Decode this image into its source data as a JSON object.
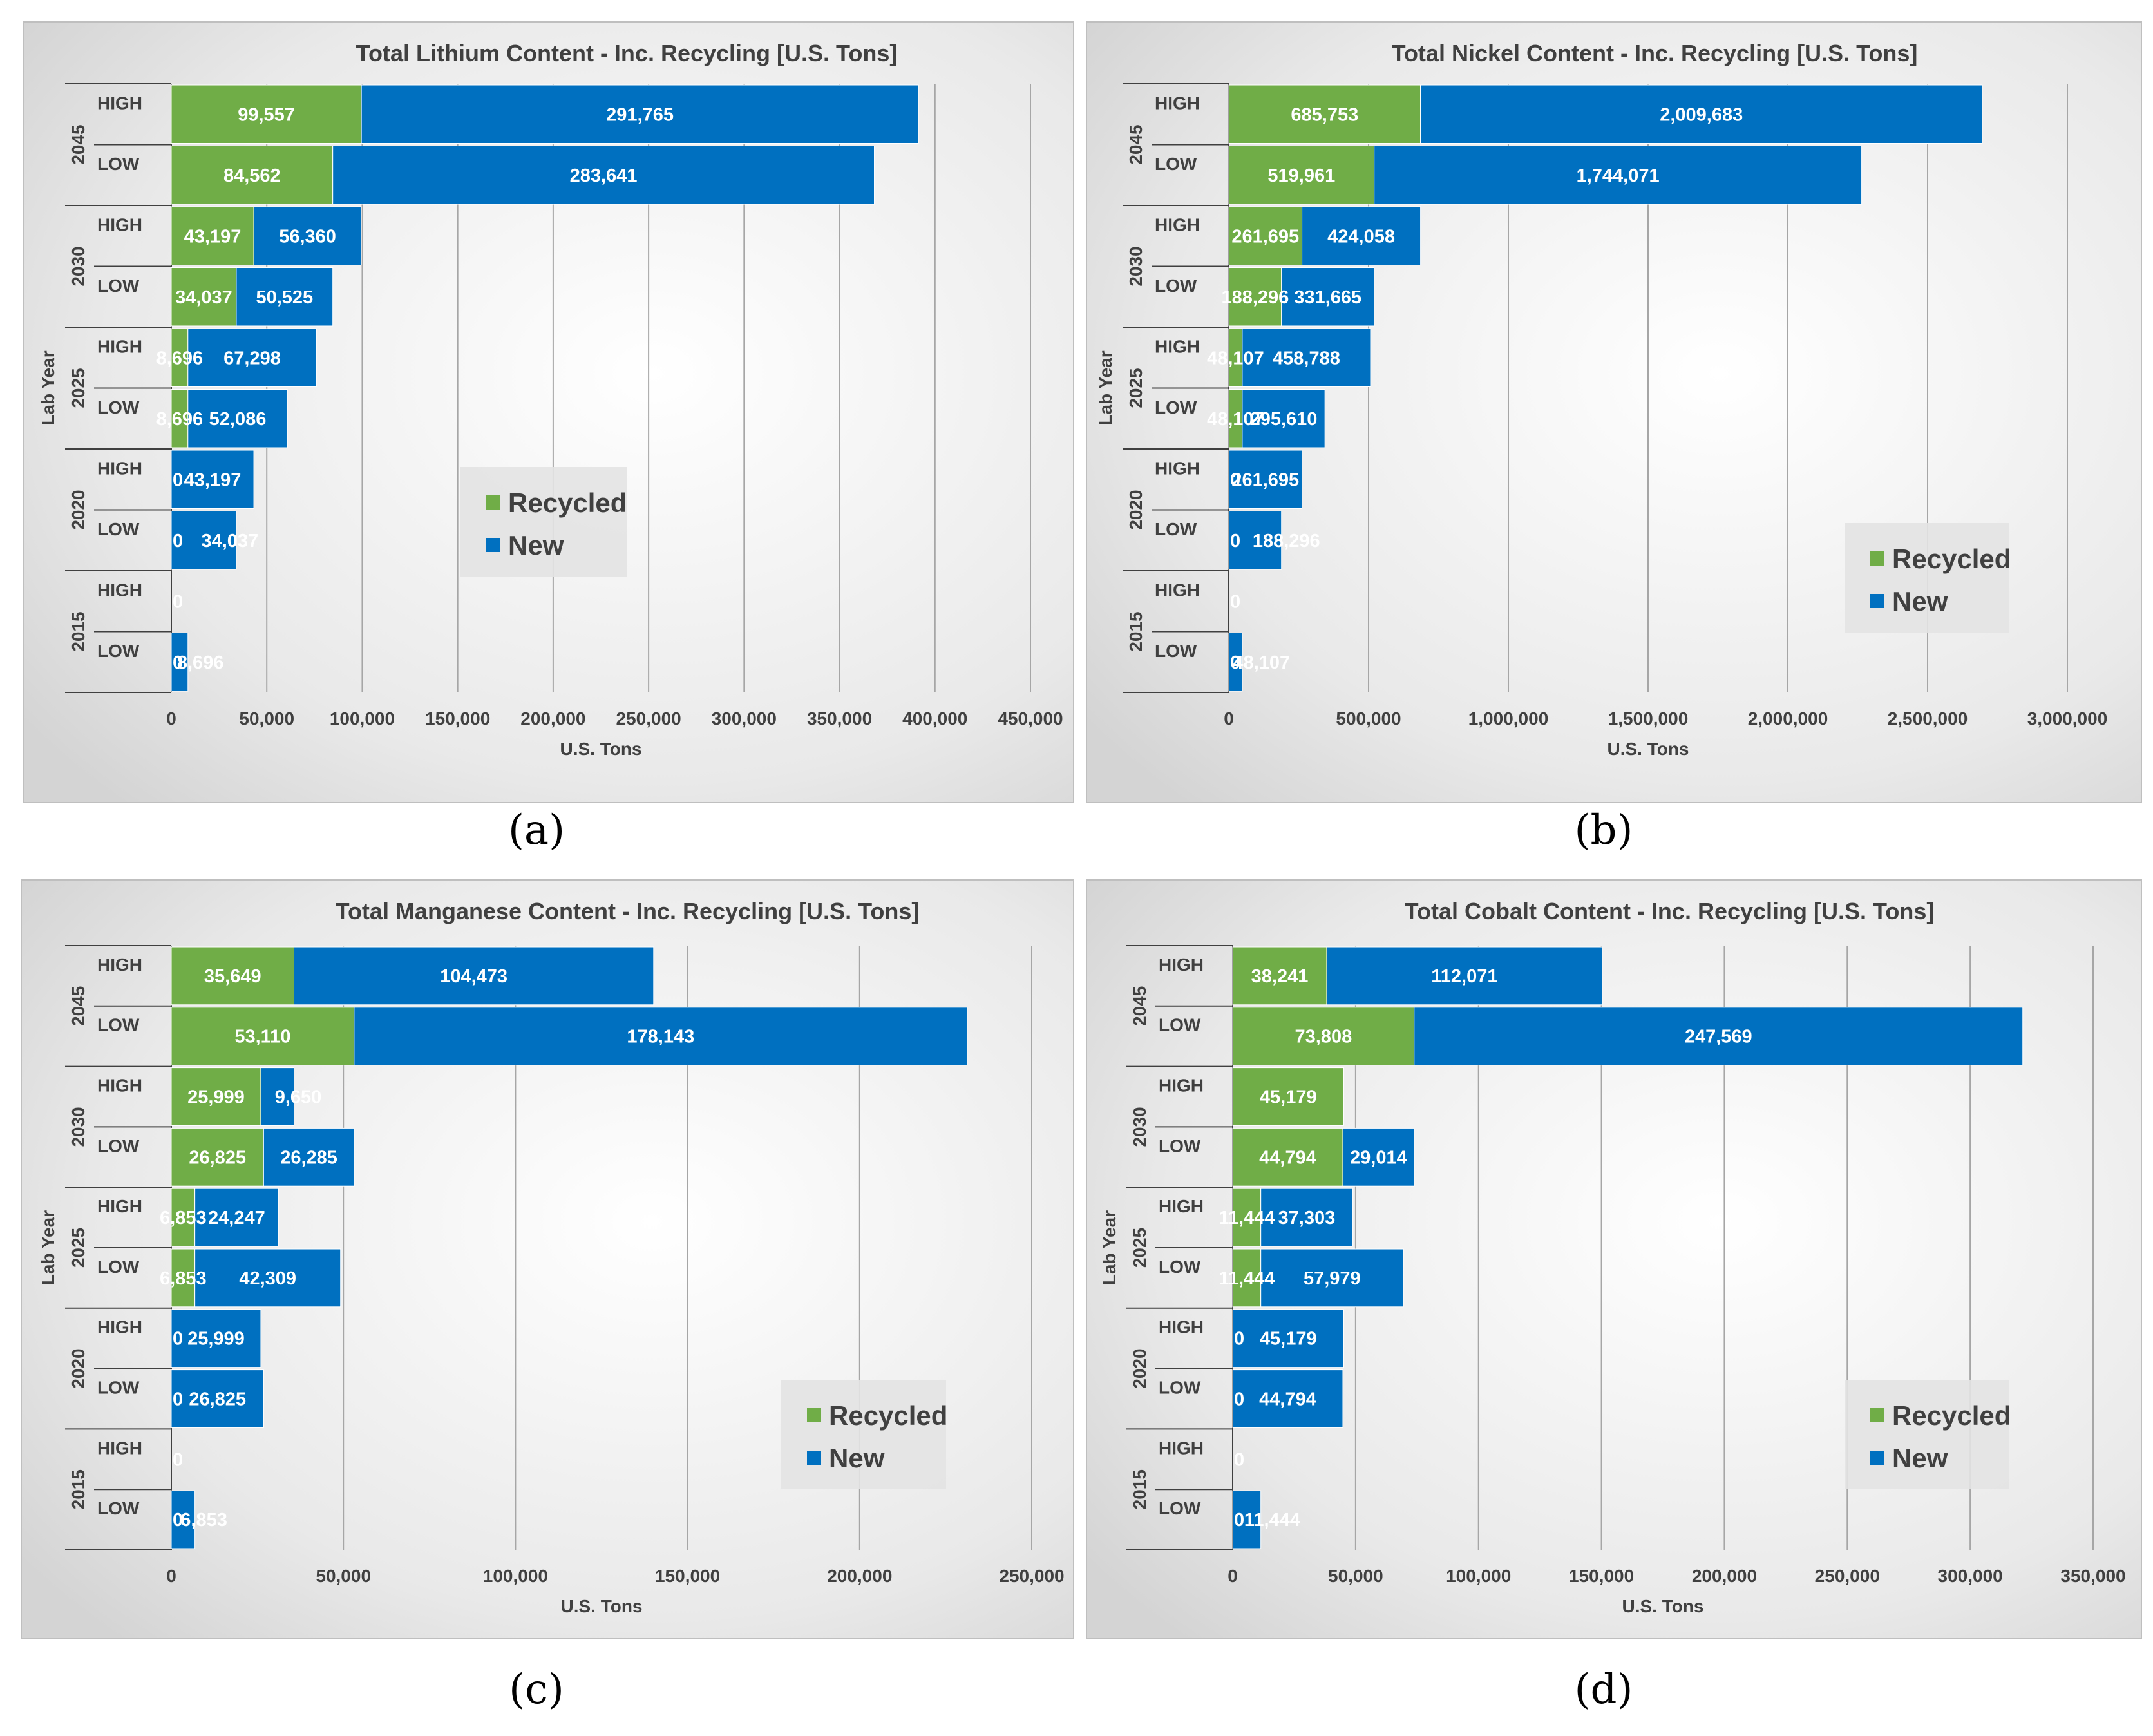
{
  "colors": {
    "recycled": "#70AD47",
    "new": "#0070C0"
  },
  "chart_data": [
    {
      "panel": "(a)",
      "type": "bar",
      "orientation": "horizontal",
      "stacked": true,
      "title": "Total Lithium Content - Inc. Recycling [U.S. Tons]",
      "xlabel": "U.S. Tons",
      "ylabel": "Lab Year",
      "xlim": [
        0,
        450000
      ],
      "xticks": [
        0,
        50000,
        100000,
        150000,
        200000,
        250000,
        300000,
        350000,
        400000,
        450000
      ],
      "xtick_labels": [
        "0",
        "50,000",
        "100,000",
        "150,000",
        "200,000",
        "250,000",
        "300,000",
        "350,000",
        "400,000",
        "450,000"
      ],
      "legend": [
        "Recycled",
        "New"
      ],
      "legend_position": "center-right",
      "groups": [
        {
          "year": "2045",
          "rows": [
            {
              "label": "HIGH",
              "recycled": 99557,
              "new": 291765,
              "recycled_label": "99,557",
              "new_label": "291,765"
            },
            {
              "label": "LOW",
              "recycled": 84562,
              "new": 283641,
              "recycled_label": "84,562",
              "new_label": "283,641"
            }
          ]
        },
        {
          "year": "2030",
          "rows": [
            {
              "label": "HIGH",
              "recycled": 43197,
              "new": 56360,
              "recycled_label": "43,197",
              "new_label": "56,360"
            },
            {
              "label": "LOW",
              "recycled": 34037,
              "new": 50525,
              "recycled_label": "34,037",
              "new_label": "50,525"
            }
          ]
        },
        {
          "year": "2025",
          "rows": [
            {
              "label": "HIGH",
              "recycled": 8696,
              "new": 67298,
              "recycled_label": "8,696",
              "new_label": "67,298"
            },
            {
              "label": "LOW",
              "recycled": 8696,
              "new": 52086,
              "recycled_label": "8,696",
              "new_label": "52,086"
            }
          ]
        },
        {
          "year": "2020",
          "rows": [
            {
              "label": "HIGH",
              "recycled": 0,
              "new": 43197,
              "recycled_label": "0",
              "new_label": "43,197"
            },
            {
              "label": "LOW",
              "recycled": 0,
              "new": 34037,
              "recycled_label": "0",
              "new_label": "34,037"
            }
          ]
        },
        {
          "year": "2015",
          "rows": [
            {
              "label": "HIGH",
              "recycled": 0,
              "new": 0,
              "recycled_label": "0",
              "new_label": ""
            },
            {
              "label": "LOW",
              "recycled": 0,
              "new": 8696,
              "recycled_label": "0",
              "new_label": "8,696"
            }
          ]
        }
      ]
    },
    {
      "panel": "(b)",
      "type": "bar",
      "orientation": "horizontal",
      "stacked": true,
      "title": "Total Nickel Content - Inc. Recycling [U.S. Tons]",
      "xlabel": "U.S. Tons",
      "ylabel": "Lab Year",
      "xlim": [
        0,
        3000000
      ],
      "xticks": [
        0,
        500000,
        1000000,
        1500000,
        2000000,
        2500000,
        3000000
      ],
      "xtick_labels": [
        "0",
        "500,000",
        "1,000,000",
        "1,500,000",
        "2,000,000",
        "2,500,000",
        "3,000,000"
      ],
      "legend": [
        "Recycled",
        "New"
      ],
      "legend_position": "bottom-right",
      "groups": [
        {
          "year": "2045",
          "rows": [
            {
              "label": "HIGH",
              "recycled": 685753,
              "new": 2009683,
              "recycled_label": "685,753",
              "new_label": "2,009,683"
            },
            {
              "label": "LOW",
              "recycled": 519961,
              "new": 1744071,
              "recycled_label": "519,961",
              "new_label": "1,744,071"
            }
          ]
        },
        {
          "year": "2030",
          "rows": [
            {
              "label": "HIGH",
              "recycled": 261695,
              "new": 424058,
              "recycled_label": "261,695",
              "new_label": "424,058"
            },
            {
              "label": "LOW",
              "recycled": 188296,
              "new": 331665,
              "recycled_label": "188,296",
              "new_label": "331,665"
            }
          ]
        },
        {
          "year": "2025",
          "rows": [
            {
              "label": "HIGH",
              "recycled": 48107,
              "new": 458788,
              "recycled_label": "48,107",
              "new_label": "458,788"
            },
            {
              "label": "LOW",
              "recycled": 48107,
              "new": 295610,
              "recycled_label": "48,107",
              "new_label": "295,610"
            }
          ]
        },
        {
          "year": "2020",
          "rows": [
            {
              "label": "HIGH",
              "recycled": 0,
              "new": 261695,
              "recycled_label": "0",
              "new_label": "261,695"
            },
            {
              "label": "LOW",
              "recycled": 0,
              "new": 188296,
              "recycled_label": "0",
              "new_label": "188,296"
            }
          ]
        },
        {
          "year": "2015",
          "rows": [
            {
              "label": "HIGH",
              "recycled": 0,
              "new": 0,
              "recycled_label": "0",
              "new_label": ""
            },
            {
              "label": "LOW",
              "recycled": 0,
              "new": 48107,
              "recycled_label": "0",
              "new_label": "48,107"
            }
          ]
        }
      ]
    },
    {
      "panel": "(c)",
      "type": "bar",
      "orientation": "horizontal",
      "stacked": true,
      "title": "Total Manganese Content - Inc. Recycling [U.S. Tons]",
      "xlabel": "U.S. Tons",
      "ylabel": "Lab Year",
      "xlim": [
        0,
        250000
      ],
      "xticks": [
        0,
        50000,
        100000,
        150000,
        200000,
        250000
      ],
      "xtick_labels": [
        "0",
        "50,000",
        "100,000",
        "150,000",
        "200,000",
        "250,000"
      ],
      "legend": [
        "Recycled",
        "New"
      ],
      "legend_position": "bottom-right",
      "groups": [
        {
          "year": "2045",
          "rows": [
            {
              "label": "HIGH",
              "recycled": 35649,
              "new": 104473,
              "recycled_label": "35,649",
              "new_label": "104,473"
            },
            {
              "label": "LOW",
              "recycled": 53110,
              "new": 178143,
              "recycled_label": "53,110",
              "new_label": "178,143"
            }
          ]
        },
        {
          "year": "2030",
          "rows": [
            {
              "label": "HIGH",
              "recycled": 25999,
              "new": 9650,
              "recycled_label": "25,999",
              "new_label": "9,650"
            },
            {
              "label": "LOW",
              "recycled": 26825,
              "new": 26285,
              "recycled_label": "26,825",
              "new_label": "26,285"
            }
          ]
        },
        {
          "year": "2025",
          "rows": [
            {
              "label": "HIGH",
              "recycled": 6853,
              "new": 24247,
              "recycled_label": "6,853",
              "new_label": "24,247"
            },
            {
              "label": "LOW",
              "recycled": 6853,
              "new": 42309,
              "recycled_label": "6,853",
              "new_label": "42,309"
            }
          ]
        },
        {
          "year": "2020",
          "rows": [
            {
              "label": "HIGH",
              "recycled": 0,
              "new": 25999,
              "recycled_label": "0",
              "new_label": "25,999"
            },
            {
              "label": "LOW",
              "recycled": 0,
              "new": 26825,
              "recycled_label": "0",
              "new_label": "26,825"
            }
          ]
        },
        {
          "year": "2015",
          "rows": [
            {
              "label": "HIGH",
              "recycled": 0,
              "new": 0,
              "recycled_label": "0",
              "new_label": ""
            },
            {
              "label": "LOW",
              "recycled": 0,
              "new": 6853,
              "recycled_label": "0",
              "new_label": "6,853"
            }
          ]
        }
      ]
    },
    {
      "panel": "(d)",
      "type": "bar",
      "orientation": "horizontal",
      "stacked": true,
      "title": "Total Cobalt Content - Inc. Recycling [U.S. Tons]",
      "xlabel": "U.S. Tons",
      "ylabel": "Lab Year",
      "xlim": [
        0,
        350000
      ],
      "xticks": [
        0,
        50000,
        100000,
        150000,
        200000,
        250000,
        300000,
        350000
      ],
      "xtick_labels": [
        "0",
        "50,000",
        "100,000",
        "150,000",
        "200,000",
        "250,000",
        "300,000",
        "350,000"
      ],
      "legend": [
        "Recycled",
        "New"
      ],
      "legend_position": "bottom-right",
      "groups": [
        {
          "year": "2045",
          "rows": [
            {
              "label": "HIGH",
              "recycled": 38241,
              "new": 112071,
              "recycled_label": "38,241",
              "new_label": "112,071"
            },
            {
              "label": "LOW",
              "recycled": 73808,
              "new": 247569,
              "recycled_label": "73,808",
              "new_label": "247,569"
            }
          ]
        },
        {
          "year": "2030",
          "rows": [
            {
              "label": "HIGH",
              "recycled": 45179,
              "new": 0,
              "recycled_label": "45,179",
              "new_label": ""
            },
            {
              "label": "LOW",
              "recycled": 44794,
              "new": 29014,
              "recycled_label": "44,794",
              "new_label": "29,014"
            }
          ]
        },
        {
          "year": "2025",
          "rows": [
            {
              "label": "HIGH",
              "recycled": 11444,
              "new": 37303,
              "recycled_label": "11,444",
              "new_label": "37,303"
            },
            {
              "label": "LOW",
              "recycled": 11444,
              "new": 57979,
              "recycled_label": "11,444",
              "new_label": "57,979"
            }
          ]
        },
        {
          "year": "2020",
          "rows": [
            {
              "label": "HIGH",
              "recycled": 0,
              "new": 45179,
              "recycled_label": "0",
              "new_label": "45,179"
            },
            {
              "label": "LOW",
              "recycled": 0,
              "new": 44794,
              "recycled_label": "0",
              "new_label": "44,794"
            }
          ]
        },
        {
          "year": "2015",
          "rows": [
            {
              "label": "HIGH",
              "recycled": 0,
              "new": 0,
              "recycled_label": "0",
              "new_label": ""
            },
            {
              "label": "LOW",
              "recycled": 0,
              "new": 11444,
              "recycled_label": "0",
              "new_label": "11,444"
            }
          ]
        }
      ]
    }
  ]
}
